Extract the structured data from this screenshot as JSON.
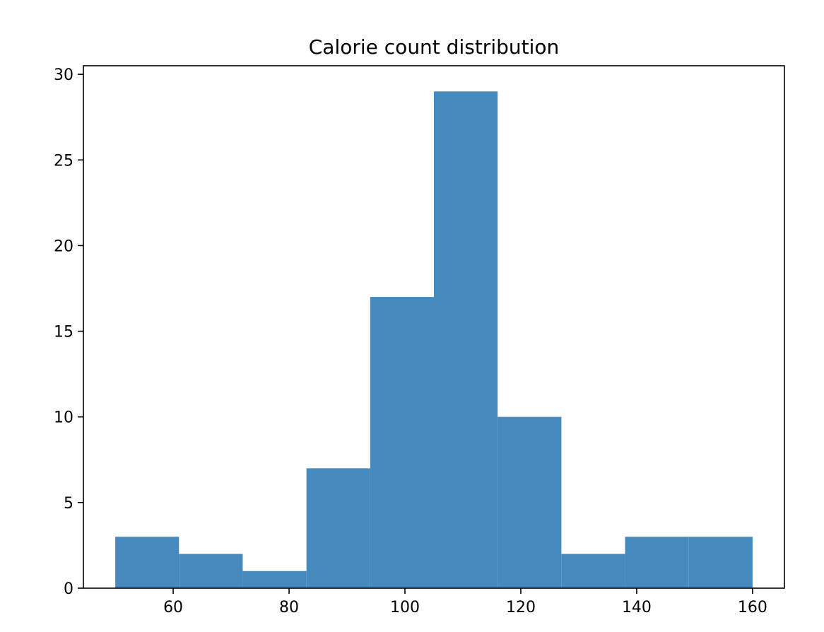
{
  "chart_data": {
    "type": "bar",
    "title": "Calorie count distribution",
    "xlabel": "",
    "ylabel": "",
    "bin_edges": [
      50,
      61,
      72,
      83,
      94,
      105,
      116,
      127,
      138,
      149,
      160
    ],
    "values": [
      3,
      2,
      1,
      7,
      17,
      29,
      10,
      2,
      3,
      3
    ],
    "xlim": [
      44.5,
      165.5
    ],
    "ylim": [
      0,
      30.5
    ],
    "x_ticks": [
      60,
      80,
      100,
      120,
      140,
      160
    ],
    "y_ticks": [
      0,
      5,
      10,
      15,
      20,
      25,
      30
    ],
    "x_tick_labels": [
      "60",
      "80",
      "100",
      "120",
      "140",
      "160"
    ],
    "y_tick_labels": [
      "0",
      "5",
      "10",
      "15",
      "20",
      "25",
      "30"
    ],
    "bar_color": "#4689bd",
    "grid": false,
    "legend": "none"
  }
}
